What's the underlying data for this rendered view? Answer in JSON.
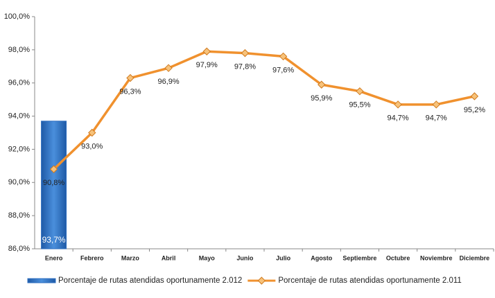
{
  "chart_data": {
    "type": "combo",
    "categories": [
      "Enero",
      "Febrero",
      "Marzo",
      "Abril",
      "Mayo",
      "Junio",
      "Julio",
      "Agosto",
      "Septiembre",
      "Octubre",
      "Noviembre",
      "Diciembre"
    ],
    "series": [
      {
        "name": "Porcentaje de rutas atendidas oportunamente 2.012",
        "type": "bar",
        "color": "#2e6fc0",
        "values": [
          93.7,
          null,
          null,
          null,
          null,
          null,
          null,
          null,
          null,
          null,
          null,
          null
        ],
        "value_labels": [
          "93,7%",
          null,
          null,
          null,
          null,
          null,
          null,
          null,
          null,
          null,
          null,
          null
        ]
      },
      {
        "name": "Porcentaje de rutas atendidas oportunamente 2.011",
        "type": "line",
        "color": "#f0912e",
        "values": [
          90.8,
          93.0,
          96.3,
          96.9,
          97.9,
          97.8,
          97.6,
          95.9,
          95.5,
          94.7,
          94.7,
          95.2
        ],
        "value_labels": [
          "90,8%",
          "93,0%",
          "96,3%",
          "96,9%",
          "97,9%",
          "97,8%",
          "97,6%",
          "95,9%",
          "95,5%",
          "94,7%",
          "94,7%",
          "95,2%"
        ]
      }
    ],
    "ylim": [
      86,
      100
    ],
    "yticks": [
      {
        "value": 86,
        "label": "86,0%"
      },
      {
        "value": 88,
        "label": "88,0%"
      },
      {
        "value": 90,
        "label": "90,0%"
      },
      {
        "value": 92,
        "label": "92,0%"
      },
      {
        "value": 94,
        "label": "94,0%"
      },
      {
        "value": 96,
        "label": "96,0%"
      },
      {
        "value": 98,
        "label": "98,0%"
      },
      {
        "value": 100,
        "label": "100,0%"
      }
    ],
    "legend": "bottom"
  }
}
